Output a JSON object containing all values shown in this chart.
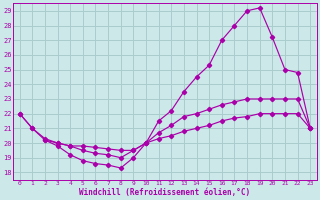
{
  "xlabel": "Windchill (Refroidissement éolien,°C)",
  "bg_color": "#cce8e8",
  "grid_color": "#aacccc",
  "line_color": "#aa00aa",
  "xlim": [
    -0.5,
    23.5
  ],
  "ylim": [
    17.5,
    29.5
  ],
  "xticks": [
    0,
    1,
    2,
    3,
    4,
    5,
    6,
    7,
    8,
    9,
    10,
    11,
    12,
    13,
    14,
    15,
    16,
    17,
    18,
    19,
    20,
    21,
    22,
    23
  ],
  "yticks": [
    18,
    19,
    20,
    21,
    22,
    23,
    24,
    25,
    26,
    27,
    28,
    29
  ],
  "line1_x": [
    0,
    1,
    2,
    3,
    4,
    5,
    6,
    7,
    8,
    9,
    10,
    11,
    12,
    13,
    14,
    15,
    16,
    17,
    18,
    19,
    20,
    21,
    22,
    23
  ],
  "line1_y": [
    22.0,
    21.0,
    20.2,
    19.8,
    19.2,
    18.8,
    18.6,
    18.5,
    18.3,
    19.0,
    20.0,
    20.7,
    21.2,
    21.8,
    22.0,
    22.3,
    22.6,
    22.8,
    23.0,
    23.0,
    23.0,
    23.0,
    23.0,
    21.0
  ],
  "line2_x": [
    0,
    1,
    2,
    3,
    4,
    5,
    6,
    7,
    8,
    9,
    10,
    11,
    12,
    13,
    14,
    15,
    16,
    17,
    18,
    19,
    20,
    21,
    22,
    23
  ],
  "line2_y": [
    22.0,
    21.0,
    20.3,
    20.0,
    19.8,
    19.5,
    19.3,
    19.2,
    19.0,
    19.5,
    20.0,
    21.5,
    22.2,
    23.5,
    24.5,
    25.3,
    27.0,
    28.0,
    29.0,
    29.2,
    27.2,
    25.0,
    24.8,
    21.0
  ],
  "line3_x": [
    2,
    3,
    4,
    5,
    6,
    7,
    8,
    9,
    10,
    11,
    12,
    13,
    14,
    15,
    16,
    17,
    18,
    19,
    20,
    21,
    22,
    23
  ],
  "line3_y": [
    20.2,
    20.0,
    19.8,
    19.8,
    19.7,
    19.6,
    19.5,
    19.5,
    20.0,
    20.3,
    20.5,
    20.8,
    21.0,
    21.2,
    21.5,
    21.7,
    21.8,
    22.0,
    22.0,
    22.0,
    22.0,
    21.0
  ]
}
